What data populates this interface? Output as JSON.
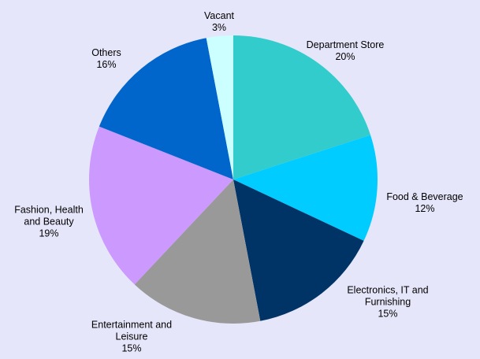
{
  "chart_data": {
    "type": "pie",
    "categories": [
      "Department Store",
      "Food & Beverage",
      "Electronics, IT and Furnishing",
      "Entertainment and Leisure",
      "Fashion, Health and Beauty",
      "Others",
      "Vacant"
    ],
    "values": [
      20,
      12,
      15,
      15,
      19,
      16,
      3
    ],
    "value_labels": [
      "20%",
      "12%",
      "15%",
      "15%",
      "19%",
      "16%",
      "3%"
    ],
    "colors": [
      "#33cccc",
      "#00ccff",
      "#003366",
      "#999999",
      "#cc99ff",
      "#0066cc",
      "#ccffff"
    ]
  }
}
